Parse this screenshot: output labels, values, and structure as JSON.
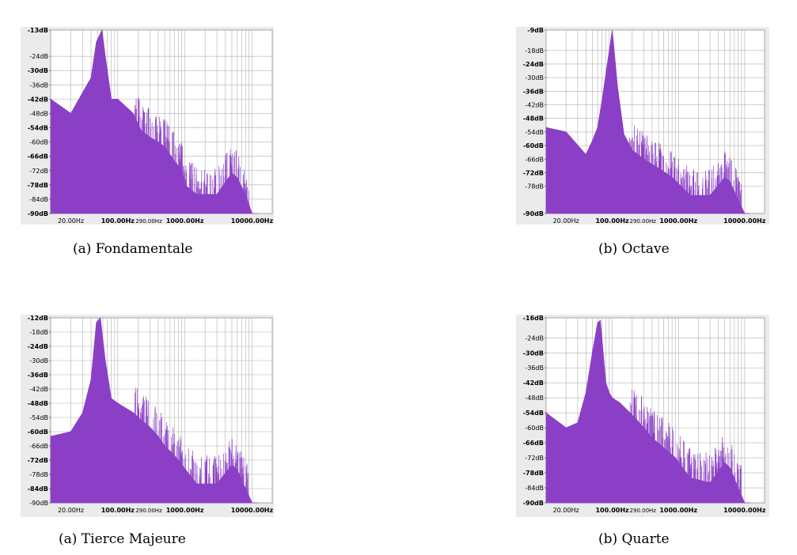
{
  "chart_data": [
    {
      "type": "area",
      "caption": "(a) Fondamentale",
      "color": "#8b3fc6",
      "x_scale": "log",
      "xlim": [
        10,
        20000
      ],
      "ylim": [
        -90,
        -13
      ],
      "y_ticks": [
        "-13dB",
        "-24dB",
        "-30dB",
        "-36dB",
        "-42dB",
        "-48dB",
        "-54dB",
        "-60dB",
        "-66dB",
        "-72dB",
        "-78dB",
        "-84dB",
        "-90dB"
      ],
      "x_ticks": [
        "20.00Hz",
        "100.00Hz",
        "290.00Hz",
        "1000.00Hz",
        "10000.00Hz"
      ],
      "grid": true,
      "x": [
        10,
        20,
        40,
        48,
        58,
        65,
        80,
        100,
        130,
        170,
        220,
        300,
        400,
        500,
        700,
        900,
        1000,
        1500,
        3000,
        5000,
        6000,
        8000,
        10000,
        12000
      ],
      "y": [
        -42,
        -48,
        -33,
        -18,
        -13,
        -24,
        -42,
        -42,
        -45,
        -48,
        -55,
        -58,
        -60,
        -62,
        -68,
        -72,
        -78,
        -82,
        -82,
        -73,
        -75,
        -82,
        -90,
        -90
      ]
    },
    {
      "type": "area",
      "caption": "(b) Octave",
      "color": "#8b3fc6",
      "x_scale": "log",
      "xlim": [
        10,
        20000
      ],
      "ylim": [
        -90,
        -9
      ],
      "y_ticks": [
        "-9dB",
        "-18dB",
        "-24dB",
        "-30dB",
        "-36dB",
        "-42dB",
        "-48dB",
        "-54dB",
        "-60dB",
        "-66dB",
        "-72dB",
        "-78dB",
        "-90dB"
      ],
      "x_ticks": [
        "20.00Hz",
        "100.00Hz",
        "290.00Hz",
        "1000.00Hz",
        "10000.00Hz"
      ],
      "grid": true,
      "x": [
        10,
        20,
        40,
        50,
        60,
        70,
        90,
        100,
        120,
        150,
        200,
        300,
        500,
        800,
        1500,
        3000,
        5000,
        6000,
        8000,
        10000,
        12000
      ],
      "y": [
        -52,
        -54,
        -64,
        -58,
        -52,
        -40,
        -18,
        -9,
        -34,
        -55,
        -62,
        -66,
        -70,
        -74,
        -82,
        -82,
        -74,
        -76,
        -84,
        -90,
        -90
      ]
    },
    {
      "type": "area",
      "caption": "(a) Tierce Majeure",
      "color": "#8b3fc6",
      "x_scale": "log",
      "xlim": [
        10,
        20000
      ],
      "ylim": [
        -90,
        -12
      ],
      "y_ticks": [
        "-12dB",
        "-18dB",
        "-24dB",
        "-30dB",
        "-36dB",
        "-42dB",
        "-48dB",
        "-54dB",
        "-60dB",
        "-66dB",
        "-72dB",
        "-78dB",
        "-84dB",
        "-90dB"
      ],
      "x_ticks": [
        "20.00Hz",
        "100.00Hz",
        "290.00Hz",
        "1000.00Hz",
        "10000.00Hz"
      ],
      "grid": true,
      "x": [
        10,
        20,
        30,
        40,
        48,
        55,
        65,
        80,
        100,
        130,
        170,
        220,
        300,
        400,
        500,
        700,
        900,
        1500,
        3000,
        5000,
        6000,
        8000,
        10000,
        12000
      ],
      "y": [
        -62,
        -60,
        -52,
        -38,
        -14,
        -12,
        -30,
        -46,
        -48,
        -50,
        -52,
        -55,
        -58,
        -62,
        -66,
        -70,
        -74,
        -82,
        -82,
        -74,
        -76,
        -84,
        -90,
        -90
      ]
    },
    {
      "type": "area",
      "caption": "(b) Quarte",
      "color": "#8b3fc6",
      "x_scale": "log",
      "xlim": [
        10,
        20000
      ],
      "ylim": [
        -90,
        -16
      ],
      "y_ticks": [
        "-16dB",
        "-24dB",
        "-30dB",
        "-36dB",
        "-42dB",
        "-48dB",
        "-54dB",
        "-60dB",
        "-66dB",
        "-72dB",
        "-78dB",
        "-84dB",
        "-90dB"
      ],
      "x_ticks": [
        "20.00Hz",
        "100.00Hz",
        "290.00Hz",
        "1000.00Hz",
        "10000.00Hz"
      ],
      "grid": true,
      "x": [
        10,
        20,
        30,
        40,
        50,
        60,
        66,
        80,
        90,
        100,
        130,
        170,
        220,
        300,
        400,
        600,
        900,
        1500,
        3000,
        5000,
        6000,
        8000,
        10000,
        12000
      ],
      "y": [
        -54,
        -60,
        -58,
        -46,
        -30,
        -18,
        -17,
        -42,
        -46,
        -48,
        -50,
        -53,
        -56,
        -60,
        -64,
        -68,
        -72,
        -80,
        -82,
        -74,
        -76,
        -84,
        -90,
        -90
      ]
    }
  ]
}
